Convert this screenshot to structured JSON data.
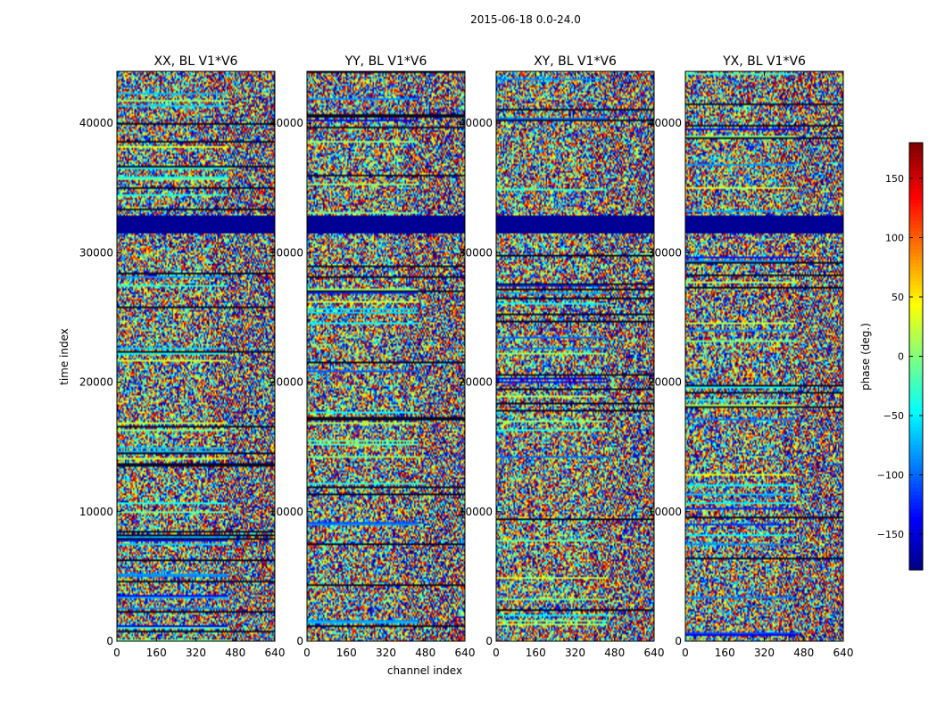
{
  "chart_data": {
    "type": "heatmap",
    "title": "2015-06-18 0.0-24.0",
    "xlabel": "channel index",
    "ylabel": "time index",
    "xlim": [
      0,
      640
    ],
    "ylim": [
      0,
      44000
    ],
    "x_ticks": [
      0,
      160,
      320,
      480,
      640
    ],
    "y_ticks": [
      0,
      10000,
      20000,
      30000,
      40000
    ],
    "panels": [
      {
        "title": "XX, BL V1*V6"
      },
      {
        "title": "YY, BL V1*V6"
      },
      {
        "title": "XY, BL V1*V6"
      },
      {
        "title": "YX, BL V1*V6"
      }
    ],
    "colorbar": {
      "label": "phase (deg.)",
      "range": [
        -180,
        180
      ],
      "ticks": [
        150,
        100,
        50,
        0,
        -50,
        -100,
        -150
      ],
      "tick_labels": [
        "150",
        "100",
        "50",
        "0",
        "−50",
        "−100",
        "−150"
      ],
      "colormap": "jet"
    },
    "notable_bands": [
      {
        "time_range": [
          31500,
          32900
        ],
        "phase": -180,
        "note": "solid dark blue band across all panels"
      }
    ]
  }
}
